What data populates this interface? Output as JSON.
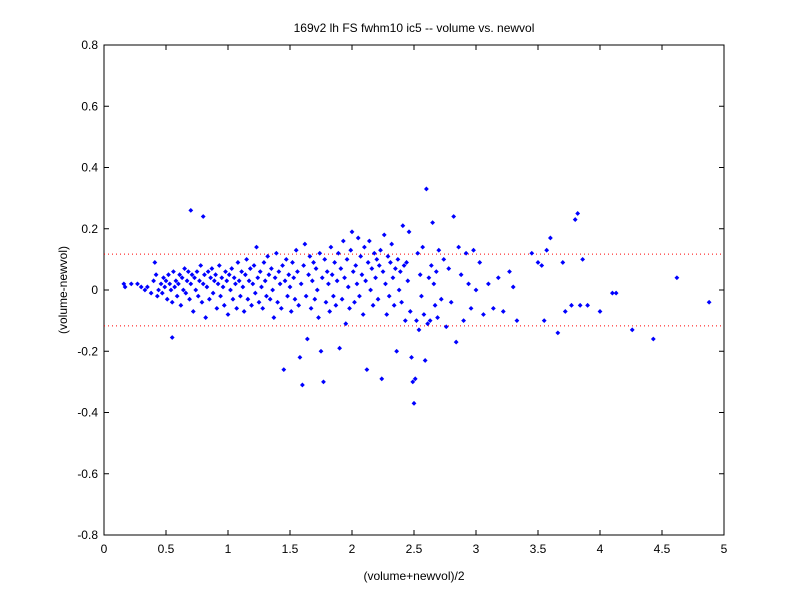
{
  "chart_data": {
    "type": "scatter",
    "title": "169v2 lh FS fwhm10 ic5 -- volume vs. newvol",
    "xlabel": "(volume+newvol)/2",
    "ylabel": "(volume-newvol)",
    "xlim": [
      0,
      5
    ],
    "ylim": [
      -0.8,
      0.8
    ],
    "x_ticks": [
      "0",
      "0.5",
      "1",
      "1.5",
      "2",
      "2.5",
      "3",
      "3.5",
      "4",
      "4.5",
      "5"
    ],
    "y_ticks": [
      "-0.8",
      "-0.6",
      "-0.4",
      "-0.2",
      "0",
      "0.2",
      "0.4",
      "0.6",
      "0.8"
    ],
    "grid": false,
    "colors": {
      "points": "#0000ff",
      "limits": "#ff0000"
    },
    "limit_lines": [
      0.117,
      -0.117
    ],
    "series": [
      {
        "points": [
          [
            0.16,
            0.02
          ],
          [
            0.17,
            0.01
          ],
          [
            0.22,
            0.02
          ],
          [
            0.27,
            0.02
          ],
          [
            0.3,
            0.01
          ],
          [
            0.33,
            0.0
          ],
          [
            0.35,
            0.01
          ],
          [
            0.38,
            -0.01
          ],
          [
            0.4,
            0.03
          ],
          [
            0.41,
            0.09
          ],
          [
            0.42,
            0.05
          ],
          [
            0.43,
            -0.02
          ],
          [
            0.44,
            0.0
          ],
          [
            0.46,
            0.02
          ],
          [
            0.47,
            -0.01
          ],
          [
            0.48,
            0.04
          ],
          [
            0.49,
            0.01
          ],
          [
            0.5,
            0.03
          ],
          [
            0.51,
            -0.03
          ],
          [
            0.52,
            0.05
          ],
          [
            0.53,
            0.02
          ],
          [
            0.54,
            0.0
          ],
          [
            0.55,
            -0.04
          ],
          [
            0.55,
            -0.155
          ],
          [
            0.56,
            0.06
          ],
          [
            0.57,
            0.01
          ],
          [
            0.58,
            0.03
          ],
          [
            0.59,
            -0.02
          ],
          [
            0.6,
            0.02
          ],
          [
            0.61,
            0.05
          ],
          [
            0.62,
            -0.05
          ],
          [
            0.63,
            0.04
          ],
          [
            0.64,
            0.0
          ],
          [
            0.65,
            0.07
          ],
          [
            0.66,
            -0.01
          ],
          [
            0.67,
            0.03
          ],
          [
            0.68,
            0.06
          ],
          [
            0.69,
            -0.03
          ],
          [
            0.7,
            0.26
          ],
          [
            0.7,
            0.02
          ],
          [
            0.71,
            0.05
          ],
          [
            0.72,
            -0.07
          ],
          [
            0.73,
            0.04
          ],
          [
            0.74,
            0.0
          ],
          [
            0.75,
            0.06
          ],
          [
            0.76,
            -0.02
          ],
          [
            0.77,
            0.03
          ],
          [
            0.78,
            0.08
          ],
          [
            0.79,
            -0.04
          ],
          [
            0.8,
            0.24
          ],
          [
            0.8,
            0.02
          ],
          [
            0.81,
            0.05
          ],
          [
            0.82,
            -0.09
          ],
          [
            0.83,
            0.01
          ],
          [
            0.84,
            0.06
          ],
          [
            0.85,
            -0.03
          ],
          [
            0.86,
            0.04
          ],
          [
            0.87,
            0.07
          ],
          [
            0.88,
            -0.01
          ],
          [
            0.89,
            0.03
          ],
          [
            0.9,
            0.05
          ],
          [
            0.91,
            -0.06
          ],
          [
            0.92,
            0.02
          ],
          [
            0.93,
            0.08
          ],
          [
            0.94,
            -0.02
          ],
          [
            0.95,
            0.04
          ],
          [
            0.96,
            0.01
          ],
          [
            0.97,
            -0.05
          ],
          [
            0.98,
            0.06
          ],
          [
            0.99,
            0.03
          ],
          [
            1.0,
            -0.08
          ],
          [
            1.01,
            0.05
          ],
          [
            1.02,
            0.0
          ],
          [
            1.03,
            0.07
          ],
          [
            1.04,
            -0.03
          ],
          [
            1.05,
            0.04
          ],
          [
            1.06,
            0.02
          ],
          [
            1.07,
            -0.06
          ],
          [
            1.08,
            0.09
          ],
          [
            1.09,
            0.03
          ],
          [
            1.1,
            -0.02
          ],
          [
            1.11,
            0.06
          ],
          [
            1.12,
            0.01
          ],
          [
            1.13,
            -0.07
          ],
          [
            1.14,
            0.05
          ],
          [
            1.15,
            0.1
          ],
          [
            1.16,
            -0.03
          ],
          [
            1.17,
            0.03
          ],
          [
            1.18,
            0.07
          ],
          [
            1.19,
            -0.05
          ],
          [
            1.2,
            0.02
          ],
          [
            1.21,
            0.08
          ],
          [
            1.22,
            -0.01
          ],
          [
            1.23,
            0.14
          ],
          [
            1.24,
            0.04
          ],
          [
            1.25,
            -0.04
          ],
          [
            1.26,
            0.06
          ],
          [
            1.27,
            0.01
          ],
          [
            1.28,
            -0.06
          ],
          [
            1.29,
            0.09
          ],
          [
            1.3,
            0.03
          ],
          [
            1.31,
            -0.02
          ],
          [
            1.32,
            0.11
          ],
          [
            1.33,
            0.05
          ],
          [
            1.34,
            -0.03
          ],
          [
            1.35,
            0.07
          ],
          [
            1.36,
            0.0
          ],
          [
            1.37,
            -0.09
          ],
          [
            1.38,
            0.04
          ],
          [
            1.39,
            0.12
          ],
          [
            1.4,
            -0.04
          ],
          [
            1.41,
            0.06
          ],
          [
            1.42,
            0.02
          ],
          [
            1.43,
            -0.06
          ],
          [
            1.44,
            0.08
          ],
          [
            1.45,
            -0.26
          ],
          [
            1.46,
            0.03
          ],
          [
            1.47,
            0.1
          ],
          [
            1.48,
            -0.02
          ],
          [
            1.49,
            0.05
          ],
          [
            1.5,
            0.01
          ],
          [
            1.51,
            -0.07
          ],
          [
            1.52,
            0.09
          ],
          [
            1.53,
            0.04
          ],
          [
            1.54,
            -0.03
          ],
          [
            1.55,
            0.13
          ],
          [
            1.56,
            0.06
          ],
          [
            1.57,
            -0.05
          ],
          [
            1.58,
            -0.22
          ],
          [
            1.59,
            0.02
          ],
          [
            1.6,
            -0.31
          ],
          [
            1.61,
            0.08
          ],
          [
            1.62,
            0.15
          ],
          [
            1.63,
            -0.02
          ],
          [
            1.64,
            -0.16
          ],
          [
            1.65,
            0.05
          ],
          [
            1.66,
            0.11
          ],
          [
            1.67,
            -0.06
          ],
          [
            1.68,
            0.03
          ],
          [
            1.69,
            0.09
          ],
          [
            1.7,
            -0.03
          ],
          [
            1.71,
            0.07
          ],
          [
            1.72,
            0.0
          ],
          [
            1.73,
            -0.09
          ],
          [
            1.74,
            0.12
          ],
          [
            1.75,
            -0.2
          ],
          [
            1.76,
            0.04
          ],
          [
            1.77,
            -0.3
          ],
          [
            1.78,
            0.1
          ],
          [
            1.79,
            -0.04
          ],
          [
            1.8,
            0.06
          ],
          [
            1.81,
            0.02
          ],
          [
            1.82,
            -0.07
          ],
          [
            1.83,
            0.14
          ],
          [
            1.84,
            0.05
          ],
          [
            1.85,
            -0.02
          ],
          [
            1.86,
            0.09
          ],
          [
            1.87,
            -0.05
          ],
          [
            1.88,
            0.03
          ],
          [
            1.89,
            0.12
          ],
          [
            1.9,
            -0.19
          ],
          [
            1.91,
            0.07
          ],
          [
            1.92,
            -0.03
          ],
          [
            1.93,
            0.16
          ],
          [
            1.94,
            0.04
          ],
          [
            1.95,
            -0.11
          ],
          [
            1.96,
            0.1
          ],
          [
            1.97,
            0.01
          ],
          [
            1.98,
            -0.06
          ],
          [
            1.99,
            0.13
          ],
          [
            2.0,
            0.19
          ],
          [
            2.01,
            0.06
          ],
          [
            2.02,
            -0.04
          ],
          [
            2.03,
            0.08
          ],
          [
            2.04,
            0.02
          ],
          [
            2.05,
            0.17
          ],
          [
            2.06,
            -0.02
          ],
          [
            2.07,
            0.11
          ],
          [
            2.08,
            0.05
          ],
          [
            2.09,
            -0.08
          ],
          [
            2.1,
            0.14
          ],
          [
            2.11,
            0.03
          ],
          [
            2.12,
            -0.26
          ],
          [
            2.13,
            0.09
          ],
          [
            2.14,
            0.16
          ],
          [
            2.15,
            0.0
          ],
          [
            2.16,
            0.07
          ],
          [
            2.17,
            -0.05
          ],
          [
            2.18,
            0.12
          ],
          [
            2.19,
            0.04
          ],
          [
            2.2,
            0.1
          ],
          [
            2.21,
            -0.03
          ],
          [
            2.22,
            0.08
          ],
          [
            2.23,
            0.13
          ],
          [
            2.24,
            -0.29
          ],
          [
            2.25,
            0.06
          ],
          [
            2.26,
            0.18
          ],
          [
            2.27,
            0.02
          ],
          [
            2.28,
            -0.08
          ],
          [
            2.29,
            0.11
          ],
          [
            2.3,
            -0.02
          ],
          [
            2.31,
            0.09
          ],
          [
            2.32,
            0.15
          ],
          [
            2.33,
            0.04
          ],
          [
            2.34,
            -0.05
          ],
          [
            2.35,
            0.07
          ],
          [
            2.36,
            -0.2
          ],
          [
            2.37,
            0.1
          ],
          [
            2.38,
            0.0
          ],
          [
            2.39,
            0.06
          ],
          [
            2.4,
            -0.04
          ],
          [
            2.41,
            0.21
          ],
          [
            2.42,
            0.08
          ],
          [
            2.43,
            -0.1
          ],
          [
            2.44,
            0.09
          ],
          [
            2.45,
            0.03
          ],
          [
            2.46,
            0.19
          ],
          [
            2.47,
            -0.07
          ],
          [
            2.48,
            -0.22
          ],
          [
            2.49,
            -0.3
          ],
          [
            2.5,
            -0.37
          ],
          [
            2.51,
            -0.29
          ],
          [
            2.52,
            -0.1
          ],
          [
            2.53,
            0.12
          ],
          [
            2.54,
            -0.13
          ],
          [
            2.55,
            0.05
          ],
          [
            2.56,
            -0.02
          ],
          [
            2.57,
            0.14
          ],
          [
            2.58,
            -0.08
          ],
          [
            2.59,
            -0.23
          ],
          [
            2.6,
            0.33
          ],
          [
            2.61,
            -0.11
          ],
          [
            2.62,
            0.04
          ],
          [
            2.63,
            -0.1
          ],
          [
            2.64,
            0.08
          ],
          [
            2.65,
            0.22
          ],
          [
            2.66,
            0.02
          ],
          [
            2.67,
            -0.05
          ],
          [
            2.68,
            0.06
          ],
          [
            2.69,
            -0.09
          ],
          [
            2.7,
            0.13
          ],
          [
            2.72,
            -0.03
          ],
          [
            2.74,
            0.1
          ],
          [
            2.76,
            -0.12
          ],
          [
            2.78,
            0.07
          ],
          [
            2.8,
            -0.04
          ],
          [
            2.82,
            0.24
          ],
          [
            2.84,
            -0.17
          ],
          [
            2.86,
            0.14
          ],
          [
            2.88,
            0.05
          ],
          [
            2.9,
            -0.1
          ],
          [
            2.92,
            0.12
          ],
          [
            2.94,
            0.02
          ],
          [
            2.96,
            -0.06
          ],
          [
            2.98,
            0.13
          ],
          [
            3.0,
            0.0
          ],
          [
            3.03,
            0.09
          ],
          [
            3.06,
            -0.08
          ],
          [
            3.1,
            0.02
          ],
          [
            3.14,
            -0.06
          ],
          [
            3.18,
            0.04
          ],
          [
            3.22,
            -0.07
          ],
          [
            3.27,
            0.06
          ],
          [
            3.3,
            0.01
          ],
          [
            3.33,
            -0.1
          ],
          [
            3.45,
            0.12
          ],
          [
            3.5,
            0.09
          ],
          [
            3.53,
            0.08
          ],
          [
            3.55,
            -0.1
          ],
          [
            3.57,
            0.13
          ],
          [
            3.6,
            0.17
          ],
          [
            3.66,
            -0.14
          ],
          [
            3.7,
            0.09
          ],
          [
            3.72,
            -0.07
          ],
          [
            3.77,
            -0.05
          ],
          [
            3.8,
            0.23
          ],
          [
            3.82,
            0.25
          ],
          [
            3.84,
            -0.05
          ],
          [
            3.86,
            0.1
          ],
          [
            3.9,
            -0.05
          ],
          [
            4.0,
            -0.07
          ],
          [
            4.1,
            -0.01
          ],
          [
            4.13,
            -0.01
          ],
          [
            4.26,
            -0.13
          ],
          [
            4.43,
            -0.16
          ],
          [
            4.62,
            0.04
          ],
          [
            4.88,
            -0.04
          ]
        ]
      }
    ]
  }
}
